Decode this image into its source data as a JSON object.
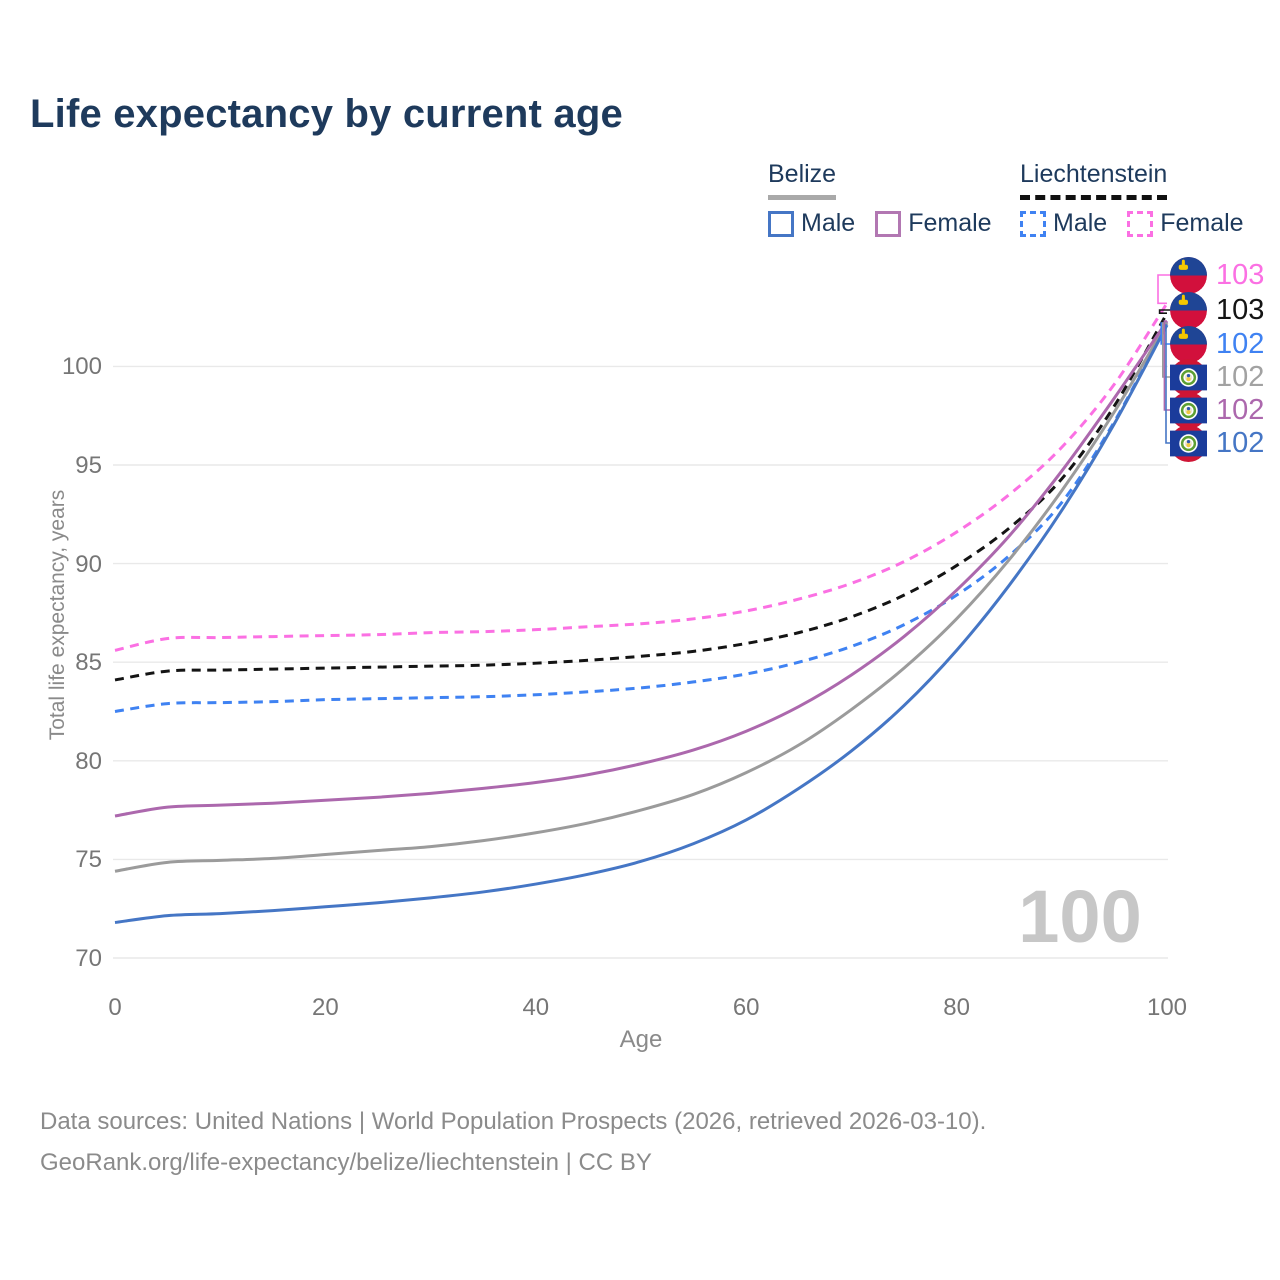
{
  "title": "Life expectancy by current age",
  "watermark": "100",
  "legend": {
    "groups": [
      {
        "country": "Belize",
        "underline": "solid",
        "items": [
          {
            "label": "Male",
            "color": "#4576c5",
            "dashed": false
          },
          {
            "label": "Female",
            "color": "#b277b2",
            "dashed": false
          }
        ]
      },
      {
        "country": "Liechtenstein",
        "underline": "dashed",
        "items": [
          {
            "label": "Male",
            "color": "#3f82f2",
            "dashed": true
          },
          {
            "label": "Female",
            "color": "#fb70e3",
            "dashed": true
          }
        ]
      }
    ]
  },
  "chart_data": {
    "type": "line",
    "title": "Life expectancy by current age",
    "xlabel": "Age",
    "ylabel": "Total life expectancy, years",
    "xlim": [
      0,
      100
    ],
    "ylim": [
      70,
      104
    ],
    "x_ticks": [
      0,
      20,
      40,
      60,
      80,
      100
    ],
    "y_ticks": [
      70,
      75,
      80,
      85,
      90,
      95,
      100
    ],
    "grid": "horizontal",
    "legend_position": "top-right",
    "x": [
      0,
      5,
      10,
      15,
      20,
      25,
      30,
      35,
      40,
      45,
      50,
      55,
      60,
      65,
      70,
      75,
      80,
      85,
      90,
      95,
      100
    ],
    "series": [
      {
        "name": "Liechtenstein Female",
        "dash": true,
        "color": "#fb70e3",
        "end_label": "103",
        "flag": "liechtenstein",
        "values": [
          85.6,
          86.2,
          86.25,
          86.3,
          86.35,
          86.4,
          86.5,
          86.55,
          86.65,
          86.8,
          86.95,
          87.2,
          87.6,
          88.2,
          89.0,
          90.1,
          91.6,
          93.5,
          95.9,
          99.1,
          103.2
        ]
      },
      {
        "name": "Liechtenstein",
        "dash": true,
        "color": "#141414",
        "end_label": "103",
        "flag": "liechtenstein",
        "values": [
          84.1,
          84.55,
          84.6,
          84.65,
          84.7,
          84.75,
          84.8,
          84.85,
          84.95,
          85.1,
          85.3,
          85.55,
          85.95,
          86.5,
          87.3,
          88.4,
          89.9,
          91.8,
          94.3,
          98.0,
          102.7
        ]
      },
      {
        "name": "Liechtenstein Male",
        "dash": true,
        "color": "#3f82f2",
        "end_label": "102",
        "flag": "liechtenstein",
        "values": [
          82.5,
          82.9,
          82.95,
          83.0,
          83.1,
          83.15,
          83.2,
          83.25,
          83.35,
          83.5,
          83.7,
          84.0,
          84.4,
          85.0,
          85.8,
          86.9,
          88.4,
          90.4,
          93.1,
          97.2,
          102.2
        ]
      },
      {
        "name": "Belize",
        "dash": false,
        "color": "#9b9b9b",
        "end_label": "102",
        "flag": "belize",
        "values": [
          74.4,
          74.85,
          74.95,
          75.05,
          75.25,
          75.45,
          75.65,
          75.95,
          76.35,
          76.85,
          77.5,
          78.3,
          79.4,
          80.8,
          82.6,
          84.7,
          87.2,
          90.2,
          93.7,
          97.7,
          102.2
        ]
      },
      {
        "name": "Belize Female",
        "dash": false,
        "color": "#ac68ad",
        "end_label": "102",
        "flag": "belize",
        "values": [
          77.2,
          77.65,
          77.75,
          77.85,
          78.0,
          78.15,
          78.35,
          78.6,
          78.9,
          79.3,
          79.85,
          80.55,
          81.5,
          82.75,
          84.35,
          86.3,
          88.65,
          91.4,
          94.7,
          98.4,
          102.3
        ]
      },
      {
        "name": "Belize Male",
        "dash": false,
        "color": "#4576c5",
        "end_label": "102",
        "flag": "belize",
        "values": [
          71.8,
          72.15,
          72.25,
          72.4,
          72.6,
          72.8,
          73.05,
          73.35,
          73.75,
          74.25,
          74.9,
          75.8,
          77.0,
          78.6,
          80.5,
          82.8,
          85.6,
          88.9,
          92.7,
          97.1,
          102.1
        ]
      }
    ]
  },
  "footer": {
    "line1": "Data sources: United Nations | World Population Prospects (2026, retrieved 2026-03-10).",
    "line2": "GeoRank.org/life-expectancy/belize/liechtenstein | CC BY"
  }
}
